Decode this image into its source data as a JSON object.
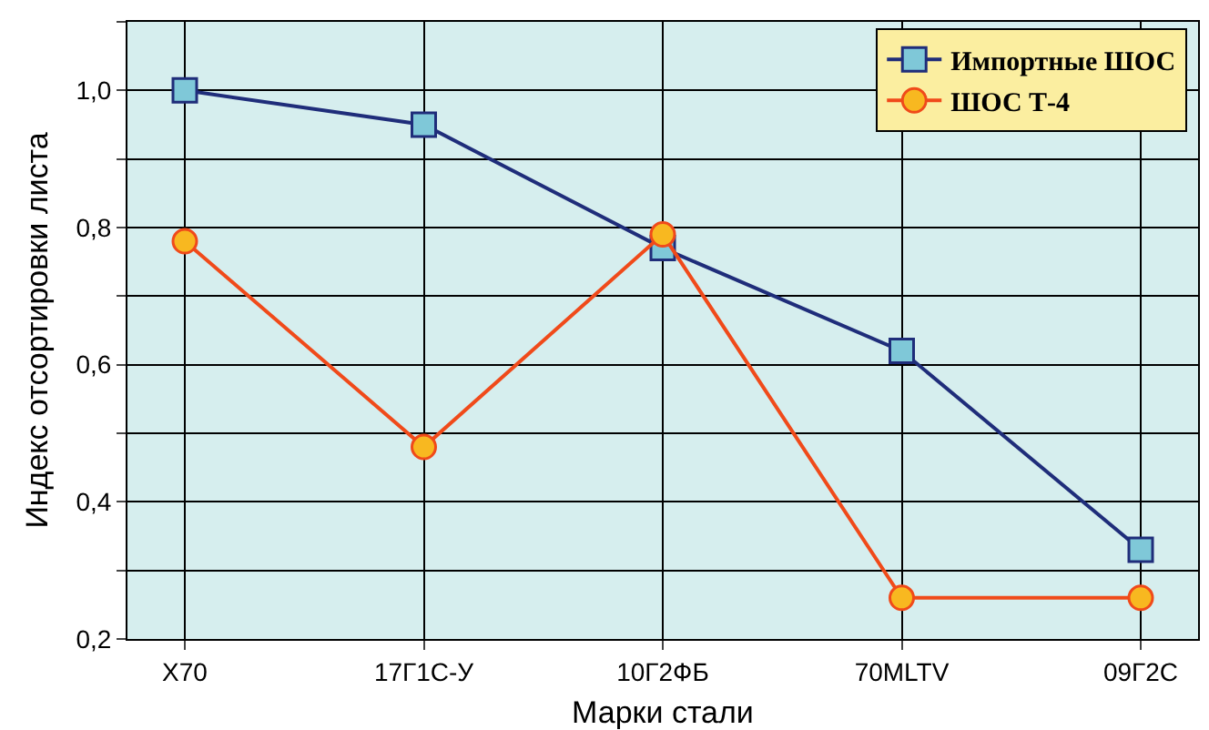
{
  "chart_data": {
    "type": "line",
    "xlabel": "Марки стали",
    "ylabel": "Индекс отсортировки листа",
    "categories": [
      "X70",
      "17Г1С-У",
      "10Г2ФБ",
      "70MLTV",
      "09Г2С"
    ],
    "series": [
      {
        "name": "Импортные ШОС",
        "color": "#1f2d7a",
        "values": [
          1.0,
          0.95,
          0.77,
          0.62,
          0.33
        ],
        "marker": "square"
      },
      {
        "name": "ШОС Т-4",
        "color": "#f04a1a",
        "values": [
          0.78,
          0.48,
          0.79,
          0.26,
          0.26
        ],
        "marker": "circle"
      }
    ],
    "ylim": [
      0.2,
      1.1
    ],
    "yticks": [
      {
        "value": 0.2,
        "label": "0,2"
      },
      {
        "value": 0.3,
        "label": null
      },
      {
        "value": 0.4,
        "label": "0,4"
      },
      {
        "value": 0.5,
        "label": null
      },
      {
        "value": 0.6,
        "label": "0,6"
      },
      {
        "value": 0.7,
        "label": null
      },
      {
        "value": 0.8,
        "label": "0,8"
      },
      {
        "value": 0.9,
        "label": null
      },
      {
        "value": 1.0,
        "label": "1,0"
      },
      {
        "value": 1.1,
        "label": null
      }
    ],
    "grid": true,
    "legend": "top right",
    "line_style": "solid"
  }
}
